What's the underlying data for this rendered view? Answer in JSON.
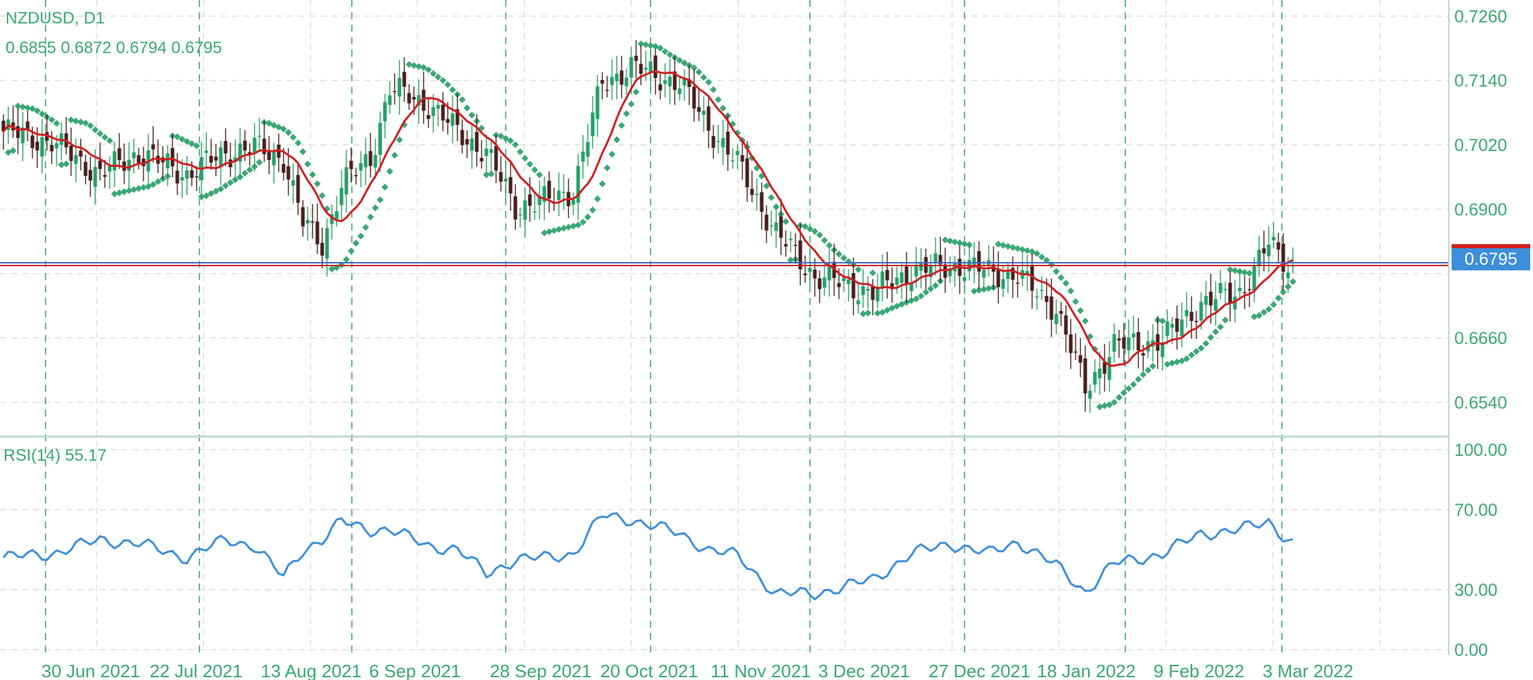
{
  "header": {
    "symbol_timeframe": "NZDUSD, D1",
    "ohlc": "0.6855 0.6872 0.6794 0.6795",
    "rsi_label": "RSI(14) 55.17"
  },
  "colors": {
    "bull_candle": "#26a069",
    "bear_candle": "#4a1f1c",
    "sar": "#3aa874",
    "ma": "#d01f1f",
    "rsi": "#3d8fdb",
    "grid": "#d6d6d6",
    "period_sep": "#3aa874",
    "axis_text": "#3aa874",
    "bid_line": "#d01f1f",
    "ask_line": "#4466cc",
    "price_tag_bg": "#3d8fdb"
  },
  "price_axis": {
    "ticks": [
      "0.7260",
      "0.7140",
      "0.7020",
      "0.6900",
      "0.6660",
      "0.6540"
    ],
    "current_price": "0.6795"
  },
  "rsi_axis": {
    "ticks": [
      "100.00",
      "70.00",
      "30.00",
      "0.00"
    ]
  },
  "time_axis": {
    "labels": [
      "30 Jun 2021",
      "22 Jul 2021",
      "13 Aug 2021",
      "6 Sep 2021",
      "28 Sep 2021",
      "20 Oct 2021",
      "11 Nov 2021",
      "3 Dec 2021",
      "27 Dec 2021",
      "18 Jan 2022",
      "9 Feb 2022",
      "3 Mar 2022"
    ]
  },
  "chart_data": {
    "type": "candlestick",
    "symbol": "NZDUSD",
    "timeframe": "D1",
    "price_range": [
      0.648,
      0.729
    ],
    "price_ticks": [
      0.726,
      0.714,
      0.702,
      0.69,
      0.666,
      0.654
    ],
    "current_price": 0.6795,
    "close_keys": [
      [
        0,
        0.7045
      ],
      [
        10,
        0.7025
      ],
      [
        20,
        0.6965
      ],
      [
        28,
        0.7005
      ],
      [
        38,
        0.6965
      ],
      [
        46,
        0.7005
      ],
      [
        52,
        0.7015
      ],
      [
        58,
        0.6995
      ],
      [
        62,
        0.6875
      ],
      [
        66,
        0.6835
      ],
      [
        70,
        0.6945
      ],
      [
        76,
        0.6995
      ],
      [
        80,
        0.7125
      ],
      [
        88,
        0.7095
      ],
      [
        94,
        0.7045
      ],
      [
        100,
        0.7005
      ],
      [
        106,
        0.6905
      ],
      [
        112,
        0.6915
      ],
      [
        118,
        0.6935
      ],
      [
        124,
        0.7135
      ],
      [
        130,
        0.7165
      ],
      [
        140,
        0.7135
      ],
      [
        146,
        0.7055
      ],
      [
        152,
        0.6985
      ],
      [
        160,
        0.6855
      ],
      [
        168,
        0.6775
      ],
      [
        180,
        0.6745
      ],
      [
        188,
        0.6785
      ],
      [
        196,
        0.6795
      ],
      [
        204,
        0.6785
      ],
      [
        210,
        0.6775
      ],
      [
        218,
        0.6715
      ],
      [
        224,
        0.6565
      ],
      [
        230,
        0.6645
      ],
      [
        240,
        0.6655
      ],
      [
        248,
        0.6725
      ],
      [
        256,
        0.6745
      ],
      [
        262,
        0.6835
      ],
      [
        266,
        0.6795
      ]
    ],
    "rsi": {
      "period": 14,
      "last_value": 55.17,
      "ylim": [
        0,
        100
      ],
      "levels": [
        70,
        30
      ],
      "keys": [
        [
          0,
          46
        ],
        [
          10,
          48
        ],
        [
          20,
          55
        ],
        [
          28,
          53
        ],
        [
          38,
          46
        ],
        [
          46,
          55
        ],
        [
          52,
          52
        ],
        [
          58,
          36
        ],
        [
          62,
          50
        ],
        [
          66,
          55
        ],
        [
          70,
          64
        ],
        [
          76,
          60
        ],
        [
          80,
          60
        ],
        [
          88,
          52
        ],
        [
          94,
          50
        ],
        [
          100,
          38
        ],
        [
          106,
          45
        ],
        [
          112,
          46
        ],
        [
          118,
          48
        ],
        [
          124,
          67
        ],
        [
          130,
          65
        ],
        [
          140,
          58
        ],
        [
          146,
          50
        ],
        [
          152,
          47
        ],
        [
          160,
          28
        ],
        [
          168,
          28
        ],
        [
          180,
          35
        ],
        [
          188,
          48
        ],
        [
          196,
          53
        ],
        [
          204,
          48
        ],
        [
          210,
          54
        ],
        [
          218,
          42
        ],
        [
          224,
          29
        ],
        [
          230,
          43
        ],
        [
          240,
          48
        ],
        [
          248,
          58
        ],
        [
          256,
          60
        ],
        [
          262,
          64
        ],
        [
          266,
          55
        ]
      ]
    }
  }
}
